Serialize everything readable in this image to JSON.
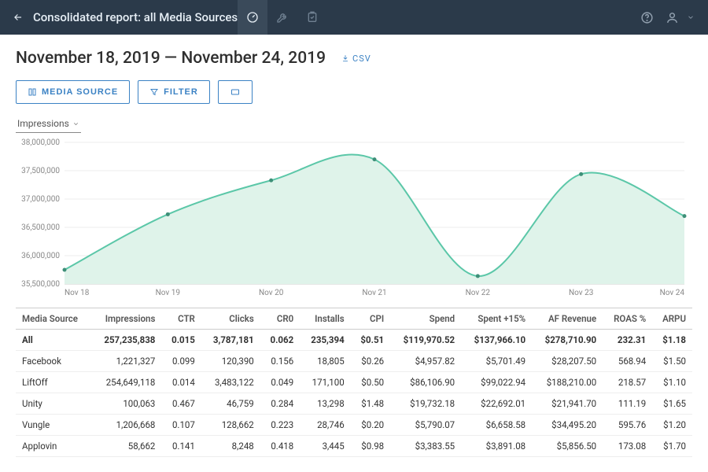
{
  "header": {
    "title": "Consolidated report: all Media Sources"
  },
  "date_range": "November 18, 2019 — November 24, 2019",
  "csv_label": "CSV",
  "buttons": {
    "media_source": "MEDIA SOURCE",
    "filter": "FILTER"
  },
  "chart": {
    "metric_label": "Impressions",
    "type": "area",
    "line_color": "#5bc7a8",
    "fill_color": "#dff3ea",
    "point_color": "#3e8f78",
    "grid_color": "#eeeeee",
    "axis_color": "#cccccc",
    "background_color": "#ffffff",
    "x_labels": [
      "Nov 18",
      "Nov 19",
      "Nov 20",
      "Nov 21",
      "Nov 22",
      "Nov 23",
      "Nov 24"
    ],
    "y_min": 35500000,
    "y_max": 38000000,
    "y_ticks": [
      35500000,
      36000000,
      36500000,
      37000000,
      37500000,
      38000000
    ],
    "y_tick_labels": [
      "35,500,000",
      "36,000,000",
      "36,500,000",
      "37,000,000",
      "37,500,000",
      "38,000,000"
    ],
    "values": [
      35750000,
      36730000,
      37330000,
      37700000,
      35640000,
      37440000,
      36700000
    ],
    "label_fontsize": 10
  },
  "table": {
    "columns": [
      "Media Source",
      "Impressions",
      "CTR",
      "Clicks",
      "CR0",
      "Installs",
      "CPI",
      "Spend",
      "Spent +15%",
      "AF Revenue",
      "ROAS %",
      "ARPU"
    ],
    "rows": [
      [
        "All",
        "257,235,838",
        "0.015",
        "3,787,181",
        "0.062",
        "235,394",
        "$0.51",
        "$119,970.52",
        "$137,966.10",
        "$278,710.90",
        "232.31",
        "$1.18"
      ],
      [
        "Facebook",
        "1,221,327",
        "0.099",
        "120,390",
        "0.156",
        "18,805",
        "$0.26",
        "$4,957.82",
        "$5,701.49",
        "$28,207.50",
        "568.94",
        "$1.50"
      ],
      [
        "LiftOff",
        "254,649,118",
        "0.014",
        "3,483,122",
        "0.049",
        "171,100",
        "$0.50",
        "$86,106.90",
        "$99,022.94",
        "$188,210.00",
        "218.57",
        "$1.10"
      ],
      [
        "Unity",
        "100,063",
        "0.467",
        "46,759",
        "0.284",
        "13,298",
        "$1.48",
        "$19,732.18",
        "$22,692.01",
        "$21,941.70",
        "111.19",
        "$1.65"
      ],
      [
        "Vungle",
        "1,206,668",
        "0.107",
        "128,662",
        "0.223",
        "28,746",
        "$0.20",
        "$5,790.07",
        "$6,658.58",
        "$34,495.20",
        "595.76",
        "$1.20"
      ],
      [
        "Applovin",
        "58,662",
        "0.141",
        "8,248",
        "0.418",
        "3,445",
        "$0.98",
        "$3,383.55",
        "$3,891.08",
        "$5,856.50",
        "173.08",
        "$1.70"
      ]
    ]
  }
}
